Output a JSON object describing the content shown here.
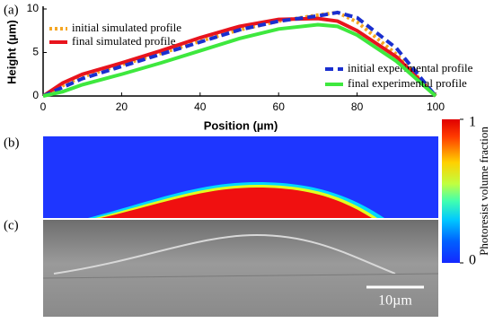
{
  "chart_data": {
    "type": "line",
    "panel_label": "(a)",
    "xlabel": "Position (µm)",
    "ylabel": "Height (µm)",
    "x": [
      0,
      5,
      10,
      20,
      30,
      40,
      50,
      60,
      70,
      75,
      80,
      90,
      100
    ],
    "series": [
      {
        "name": "initial simulated profile",
        "color": "#f5a623",
        "linestyle": "dotted",
        "values": [
          0,
          1.2,
          2.2,
          3.6,
          4.9,
          6.3,
          7.6,
          8.6,
          9.3,
          9.6,
          8.5,
          4.8,
          0
        ]
      },
      {
        "name": "final simulated profile",
        "color": "#e8141e",
        "linestyle": "solid",
        "values": [
          0,
          1.5,
          2.5,
          3.8,
          5.2,
          6.7,
          8.0,
          8.8,
          8.9,
          8.6,
          7.5,
          4.5,
          0
        ]
      },
      {
        "name": "initial experimental profile",
        "color": "#1a2fcf",
        "linestyle": "dashed",
        "values": [
          0,
          1.0,
          2.0,
          3.4,
          4.8,
          6.2,
          7.6,
          8.6,
          9.2,
          9.6,
          9.0,
          5.5,
          0
        ]
      },
      {
        "name": "final experimental profile",
        "color": "#3ee83e",
        "linestyle": "solid",
        "values": [
          0,
          0.5,
          1.3,
          2.5,
          3.8,
          5.2,
          6.6,
          7.7,
          8.2,
          8.0,
          7.0,
          4.0,
          0
        ]
      }
    ],
    "xlim": [
      0,
      100
    ],
    "xticks": [
      0,
      20,
      40,
      60,
      80,
      100
    ],
    "ylim": [
      0,
      10
    ],
    "yticks": [
      0,
      5,
      10
    ]
  },
  "panels": {
    "simulated": {
      "label": "(b)"
    },
    "sem": {
      "label": "(c)",
      "scale_bar": "10µm"
    }
  },
  "colorbar": {
    "label": "Photoresist volume fraction",
    "lim": [
      0,
      1
    ],
    "ticks": [
      0,
      1
    ]
  }
}
